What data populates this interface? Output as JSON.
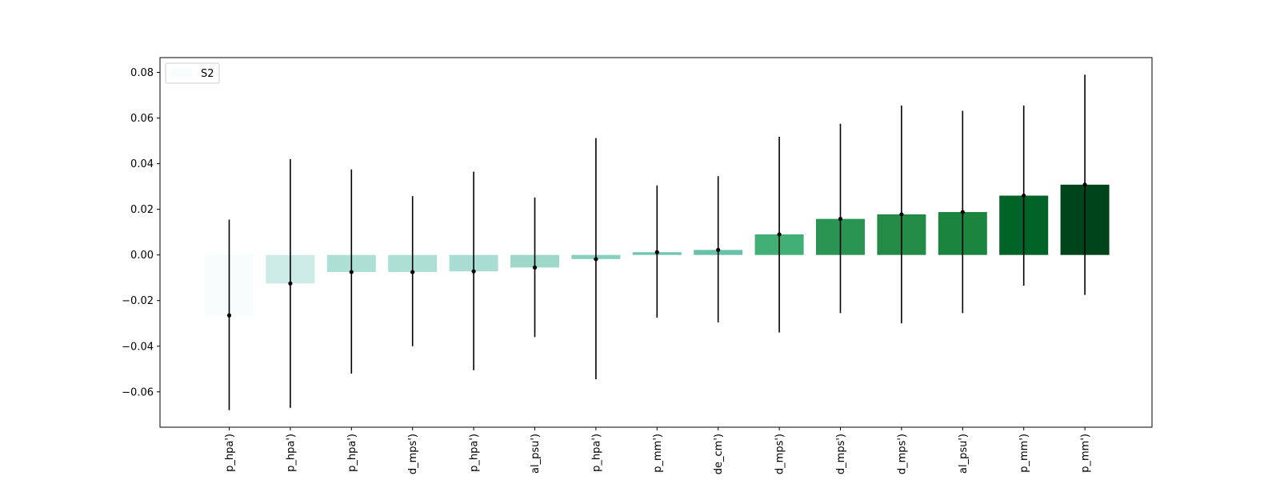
{
  "chart_data": {
    "type": "bar",
    "categories": [
      "p_hpa')",
      "p_hpa')",
      "p_hpa')",
      "d_mps')",
      "p_hpa')",
      "al_psu')",
      "p_hpa')",
      "p_mm')",
      "de_cm')",
      "d_mps')",
      "d_mps')",
      "d_mps')",
      "al_psu')",
      "p_mm')",
      "p_mm')"
    ],
    "series": [
      {
        "name": "S2",
        "values": [
          -0.0265,
          -0.0125,
          -0.0075,
          -0.0075,
          -0.0072,
          -0.0055,
          -0.0018,
          0.0012,
          0.0022,
          0.009,
          0.0158,
          0.0178,
          0.0188,
          0.026,
          0.0308
        ],
        "err_low": [
          -0.068,
          -0.067,
          -0.052,
          -0.04,
          -0.0505,
          -0.036,
          -0.0545,
          -0.0275,
          -0.0295,
          -0.034,
          -0.0255,
          -0.03,
          -0.0255,
          -0.0135,
          -0.0175
        ],
        "err_high": [
          0.0155,
          0.042,
          0.0375,
          0.0258,
          0.0365,
          0.0252,
          0.0512,
          0.0305,
          0.0345,
          0.0518,
          0.0575,
          0.0655,
          0.0632,
          0.0655,
          0.079
        ],
        "colors": [
          "#f7fcfd",
          "#cdebe6",
          "#addfd4",
          "#addfd4",
          "#a9ddd3",
          "#9ed8c9",
          "#86d0bd",
          "#71c6b0",
          "#69c2a8",
          "#41ae76",
          "#2a9552",
          "#238b45",
          "#1b853f",
          "#006428",
          "#00441b"
        ]
      }
    ],
    "yticks": [
      -0.06,
      -0.04,
      -0.02,
      0.0,
      0.02,
      0.04,
      0.06,
      0.08
    ],
    "ytick_labels": [
      "−0.06",
      "−0.04",
      "−0.02",
      "0.00",
      "0.02",
      "0.04",
      "0.06",
      "0.08"
    ],
    "ylim": [
      -0.0755,
      0.0865
    ],
    "grid": false,
    "legend_position": "top-left",
    "title": "",
    "xlabel": "",
    "ylabel": ""
  }
}
